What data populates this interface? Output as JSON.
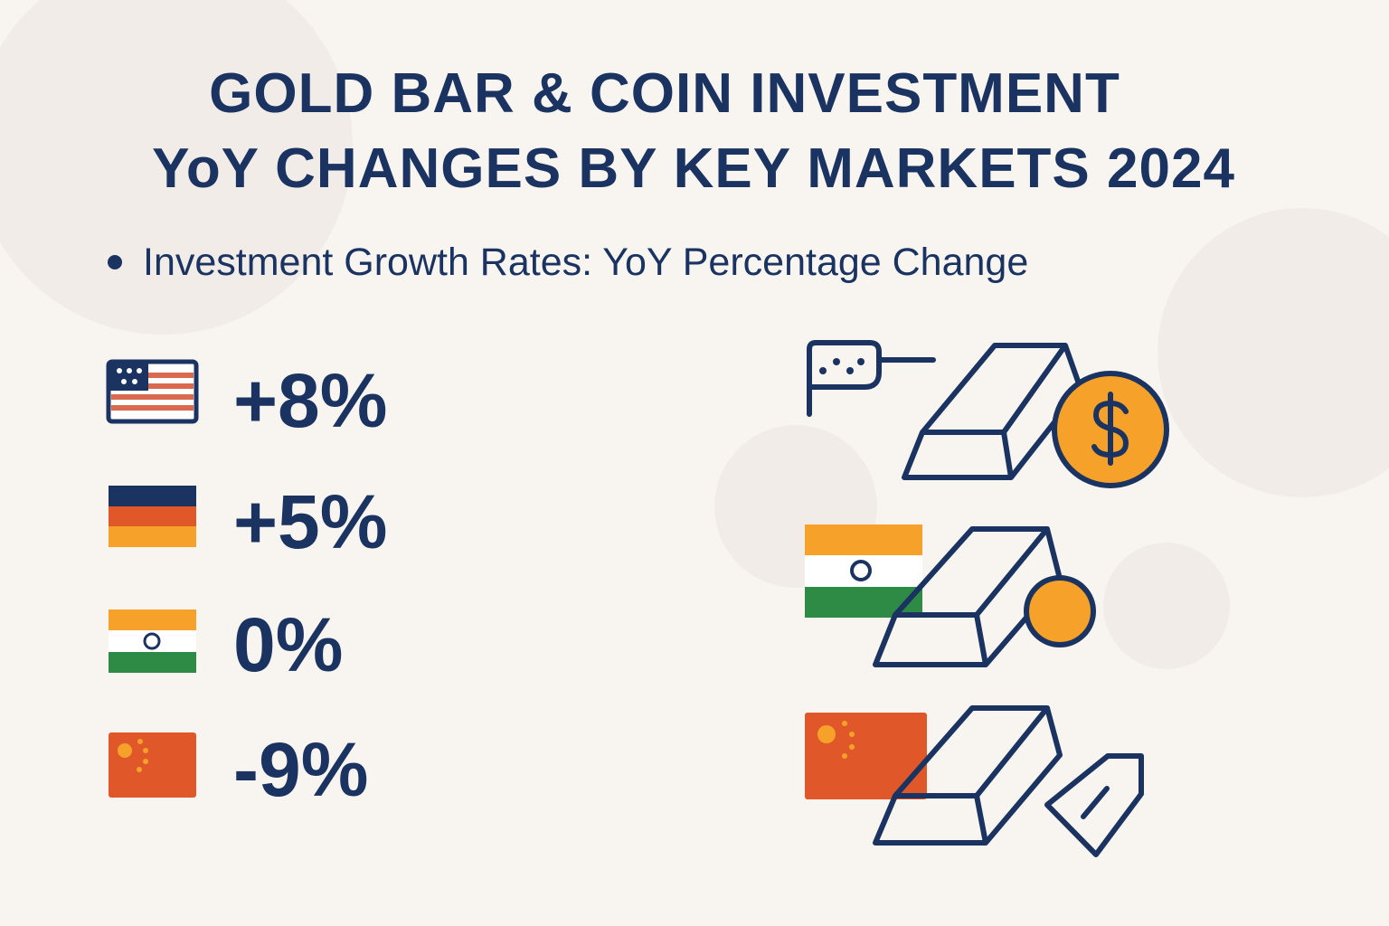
{
  "header": {
    "title_lines": [
      "GOLD BAR & COIN INVESTMENT",
      "YoY CHANGES BY KEY MARKETS 2024"
    ],
    "subtitle": "Investment Growth Rates: YoY Percentage Change"
  },
  "items": [
    {
      "value": "+8%"
    },
    {
      "value": "+5%"
    },
    {
      "value": "0%"
    },
    {
      "value": "-9%"
    }
  ]
}
